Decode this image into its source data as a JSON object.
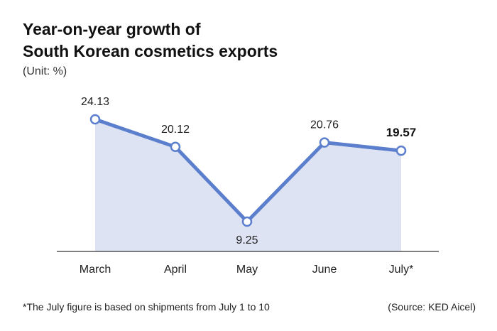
{
  "title_lines": [
    "Year-on-year growth of",
    "South Korean cosmetics exports"
  ],
  "unit_label": "(Unit: %)",
  "footnote": "*The July figure is based on shipments from July 1 to 10",
  "source": "(Source: KED Aicel)",
  "colors": {
    "line": "#5b7fcc",
    "area": "#dde3f3",
    "axis": "#333333"
  },
  "chart_data": {
    "type": "area",
    "title": "Year-on-year growth of South Korean cosmetics exports",
    "categories": [
      "March",
      "April",
      "May",
      "June",
      "July*"
    ],
    "values": [
      24.13,
      20.12,
      9.25,
      20.76,
      19.57
    ],
    "value_labels": [
      "24.13",
      "20.12",
      "9.25",
      "20.76",
      "19.57"
    ],
    "highlighted_label": "19.57",
    "ylim": [
      0,
      26
    ],
    "grid": false,
    "legend": "none"
  }
}
